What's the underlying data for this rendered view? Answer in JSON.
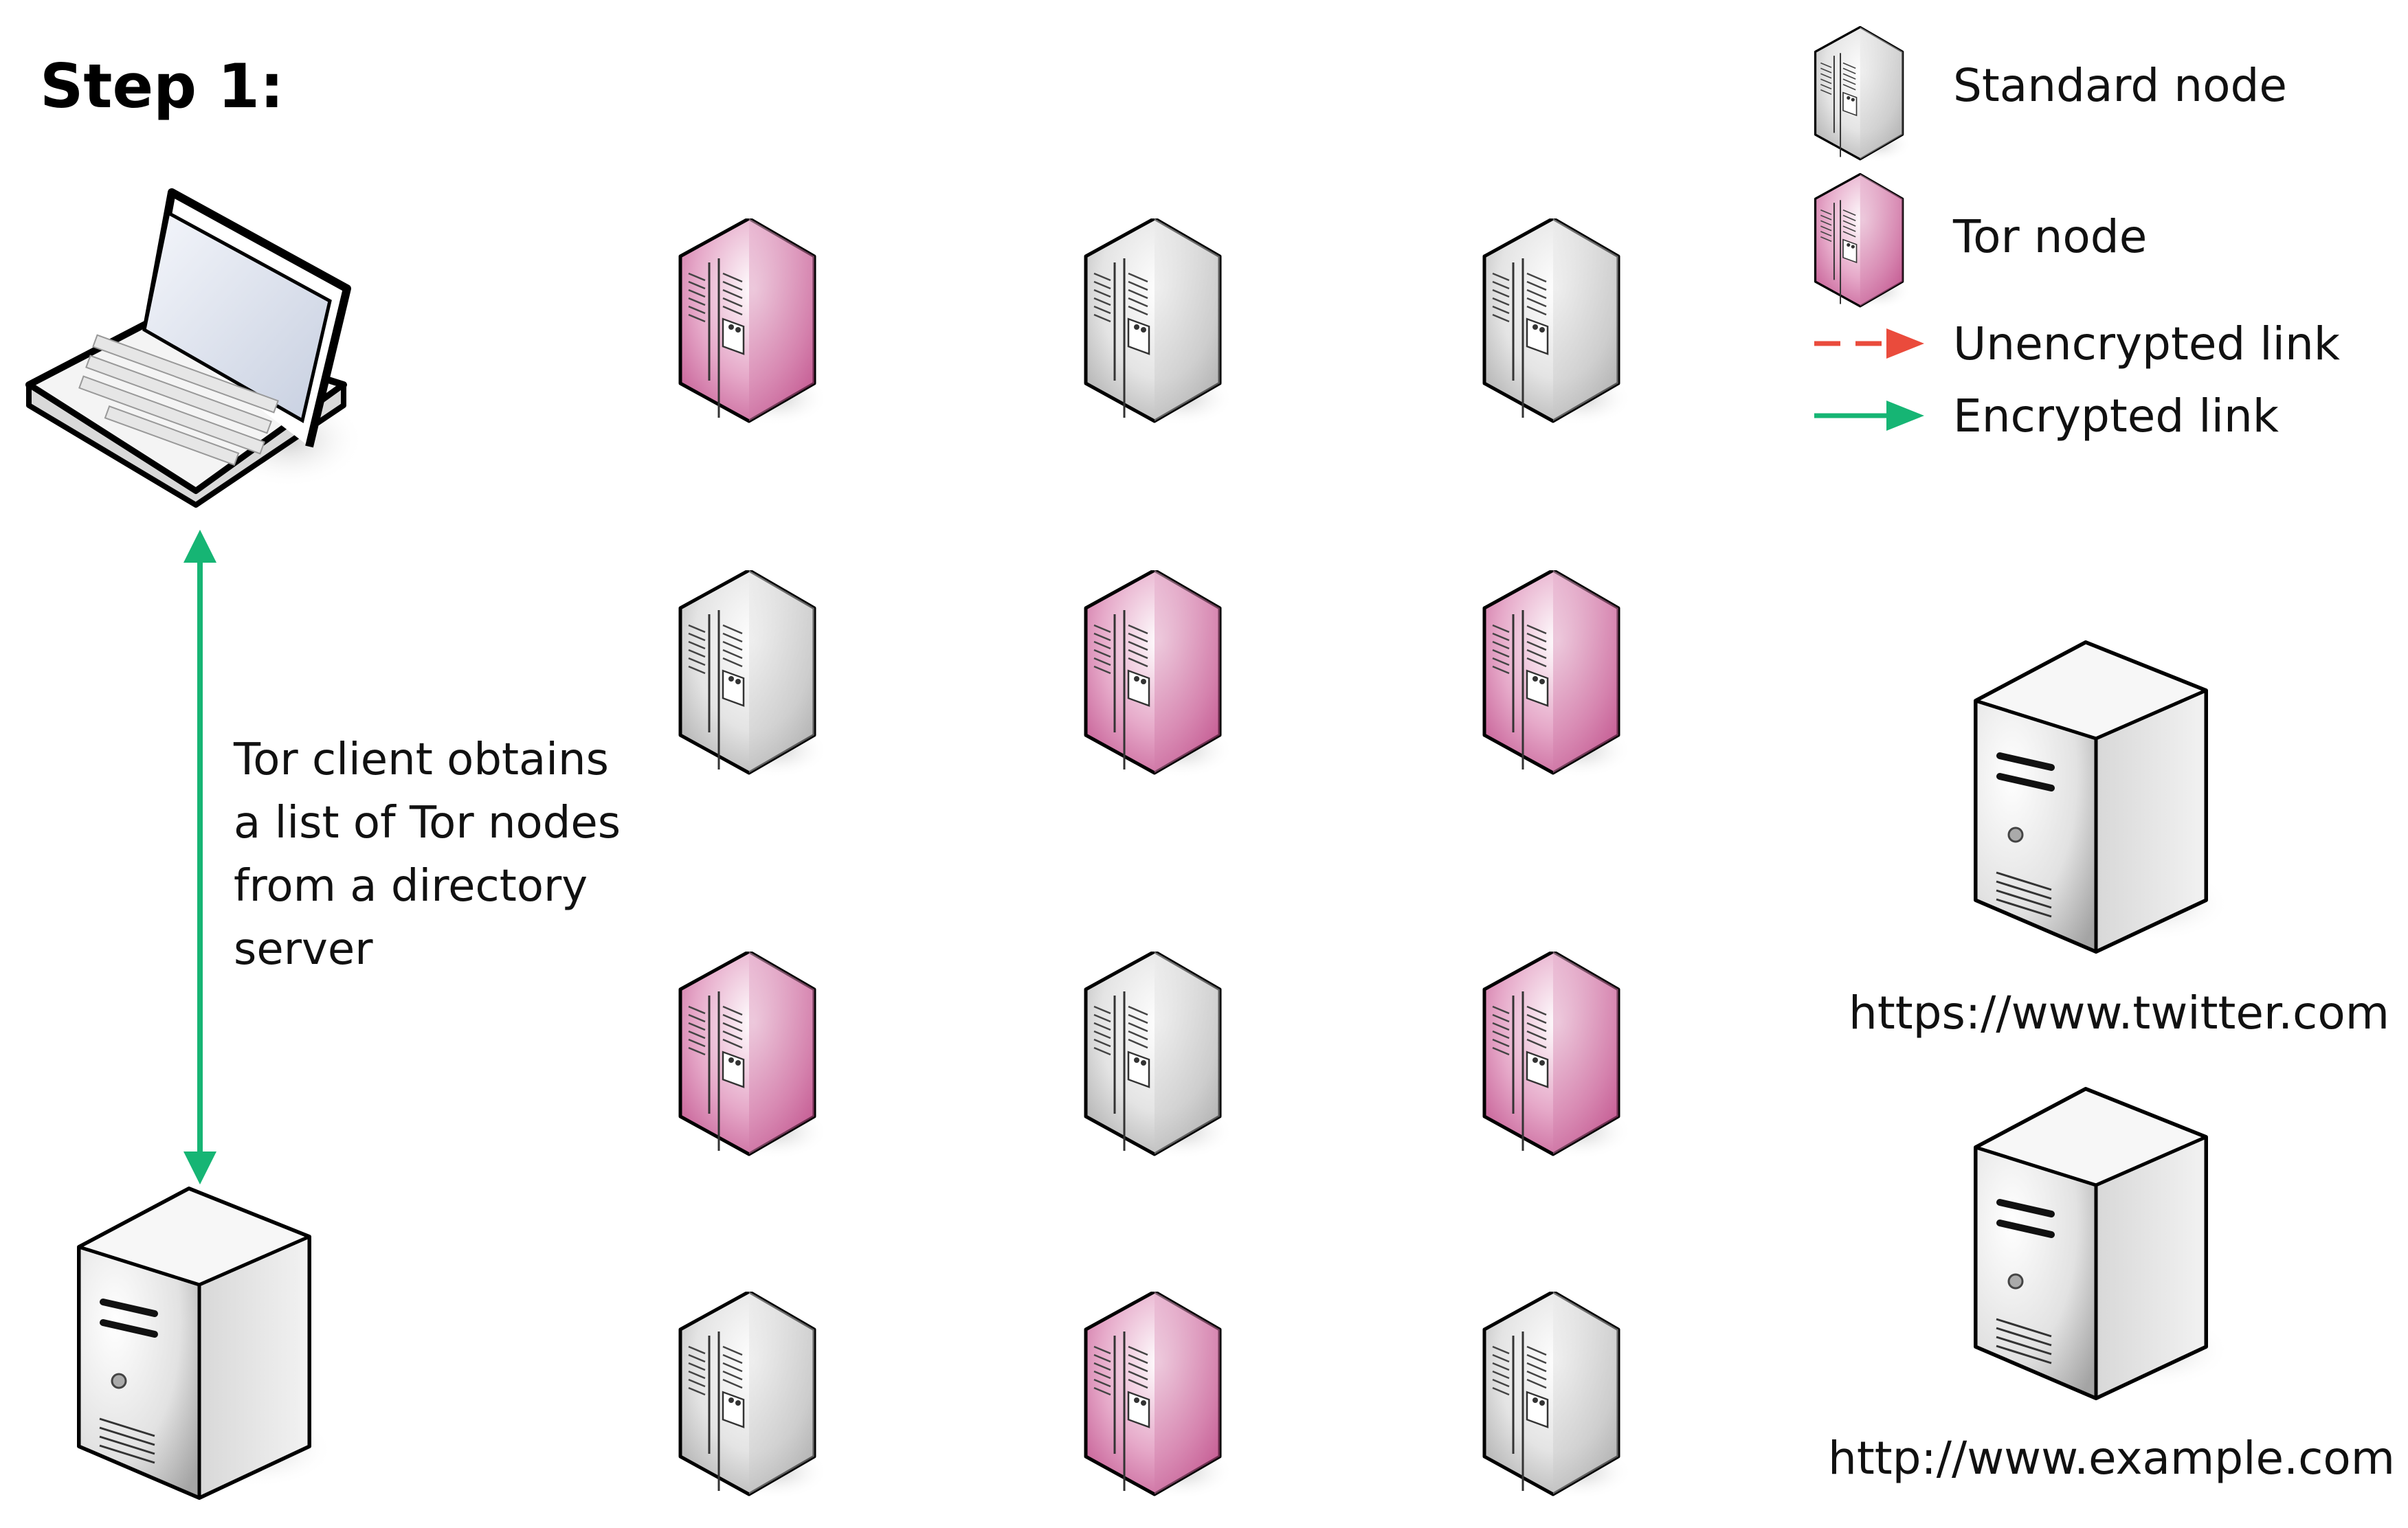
{
  "title": "Step 1:",
  "legend": {
    "standard_node": "Standard node",
    "tor_node": "Tor node",
    "unencrypted_link": "Unencrypted link",
    "encrypted_link": "Encrypted link"
  },
  "caption": "Tor client obtains\na list of Tor nodes\nfrom a directory\nserver",
  "servers": {
    "twitter_url": "https://www.twitter.com",
    "example_url": "http://www.example.com"
  },
  "colors": {
    "tor_node": "#c2558f",
    "standard_node": "#bdbdbd",
    "encrypted_link": "#16b574",
    "unencrypted_link": "#ea4b3c"
  },
  "node_grid": [
    [
      "tor",
      "standard",
      "standard"
    ],
    [
      "standard",
      "tor",
      "tor"
    ],
    [
      "tor",
      "standard",
      "tor"
    ],
    [
      "standard",
      "tor",
      "standard"
    ]
  ]
}
